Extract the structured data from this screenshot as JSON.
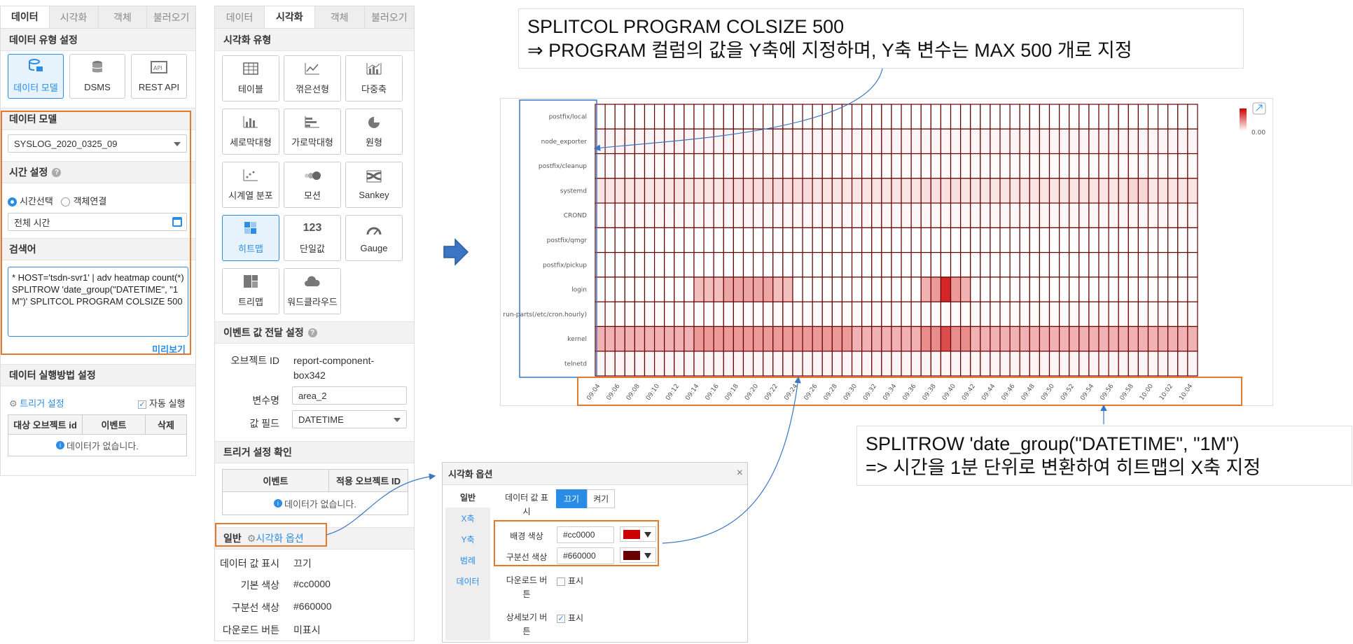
{
  "panel1": {
    "tabs": [
      "데이터",
      "시각화",
      "객체",
      "불러오기"
    ],
    "data_type_title": "데이터 유형 설정",
    "sources": [
      {
        "label": "데이터 모델",
        "icon": "database-model-icon"
      },
      {
        "label": "DSMS",
        "icon": "database-icon"
      },
      {
        "label": "REST API",
        "icon": "api-icon"
      }
    ],
    "model_title": "데이터 모델",
    "model_value": "SYSLOG_2020_0325_09",
    "time_title": "시간 설정",
    "radio_time": "시간선택",
    "radio_object": "객체연결",
    "time_value": "전체 시간",
    "search_title": "검색어",
    "query": "* HOST='tsdn-svr1' | adv heatmap count(*) SPLITROW 'date_group(\"DATETIME\", \"1M\")' SPLITCOL PROGRAM COLSIZE 500",
    "preview": "미리보기",
    "exec_title": "데이터 실행방법 설정",
    "trigger": "트리거 설정",
    "auto_run": "자동 실행",
    "table_headers": [
      "대상 오브젝트 id",
      "이벤트",
      "삭제"
    ],
    "empty": "데이터가 없습니다."
  },
  "panel2": {
    "tabs": [
      "데이터",
      "시각화",
      "객체",
      "불러오기"
    ],
    "vis_type_title": "시각화 유형",
    "types": [
      {
        "label": "테이블",
        "icon": "table-icon"
      },
      {
        "label": "꺾은선형",
        "icon": "line-chart-icon"
      },
      {
        "label": "다중축",
        "icon": "multi-axis-icon"
      },
      {
        "label": "세로막대형",
        "icon": "column-chart-icon"
      },
      {
        "label": "가로막대형",
        "icon": "bar-chart-icon"
      },
      {
        "label": "원형",
        "icon": "pie-chart-icon"
      },
      {
        "label": "시계열 분포",
        "icon": "scatter-icon"
      },
      {
        "label": "모션",
        "icon": "motion-icon"
      },
      {
        "label": "Sankey",
        "icon": "sankey-icon"
      },
      {
        "label": "히트맵",
        "icon": "heatmap-icon"
      },
      {
        "label": "단일값",
        "icon": "single-value-icon",
        "glyph": "123"
      },
      {
        "label": "Gauge",
        "icon": "gauge-icon"
      },
      {
        "label": "트리맵",
        "icon": "treemap-icon"
      },
      {
        "label": "워드클라우드",
        "icon": "word-cloud-icon"
      }
    ],
    "event_title": "이벤트 값 전달 설정",
    "object_id_label": "오브젝트 ID",
    "object_id_value1": "report-component-",
    "object_id_value2": "box342",
    "var_label": "변수명",
    "var_value": "area_2",
    "field_label": "값 필드",
    "field_value": "DATETIME",
    "trigger_check_title": "트리거 설정 확인",
    "trigger_headers": [
      "이벤트",
      "적용 오브젝트 ID"
    ],
    "empty": "데이터가 없습니다.",
    "general": "일반",
    "vis_option": "시각화 옵션",
    "summary": [
      {
        "label": "데이터 값 표시",
        "value": "끄기"
      },
      {
        "label": "기본 색상",
        "value": "#cc0000"
      },
      {
        "label": "구분선 색상",
        "value": "#660000"
      },
      {
        "label": "다운로드 버튼",
        "value": "미표시"
      }
    ]
  },
  "dialog": {
    "title": "시각화 옵션",
    "close": "×",
    "tabs": [
      "일반",
      "X축",
      "Y축",
      "범례",
      "데이터"
    ],
    "show_value_label1": "데이터 값 표",
    "show_value_label2": "시",
    "off": "끄기",
    "on": "켜기",
    "bg_label": "배경 색상",
    "bg_value": "#cc0000",
    "line_label": "구분선 색상",
    "line_value": "#660000",
    "download_label1": "다운로드 버",
    "download_label2": "튼",
    "download_opt": "표시",
    "detail_label1": "상세보기 버",
    "detail_label2": "튼",
    "detail_opt": "표시",
    "colors": {
      "bg": "#cc0000",
      "line": "#660000"
    }
  },
  "notes": {
    "top_line1": "SPLITCOL PROGRAM COLSIZE 500",
    "top_line2": "⇒  PROGRAM 컬럼의 값을 Y축에 지정하며, Y축 변수는 MAX 500 개로 지정",
    "bottom_line1": "SPLITROW 'date_group(\"DATETIME\", \"1M\")",
    "bottom_line2": "=> 시간을 1분 단위로 변환하여 히트맵의 X축 지정"
  },
  "heatmap": {
    "legend_value": "0.00"
  },
  "chart_data": {
    "type": "heatmap",
    "rows": [
      "postfix/local",
      "node_exporter",
      "postfix/cleanup",
      "systemd",
      "CROND",
      "postfix/qmgr",
      "postfix/pickup",
      "login",
      "run-parts(/etc/cron.hourly)",
      "kernel",
      "telnetd"
    ],
    "x_tick_labels": [
      "09:04",
      "09:06",
      "09:08",
      "09:10",
      "09:12",
      "09:14",
      "09:16",
      "09:18",
      "09:20",
      "09:22",
      "09:24",
      "09:26",
      "09:28",
      "09:30",
      "09:32",
      "09:34",
      "09:36",
      "09:38",
      "09:40",
      "09:42",
      "09:44",
      "09:46",
      "09:48",
      "09:50",
      "09:52",
      "09:54",
      "09:56",
      "09:58",
      "10:00",
      "10:02",
      "10:04"
    ],
    "column_count": 61,
    "color": "#cc0000",
    "border_color": "#660000",
    "legend_min": "0.00",
    "intensity_rows": {
      "postfix/local": [
        [
          0,
          60,
          0.0
        ]
      ],
      "node_exporter": [
        [
          0,
          60,
          0.04
        ]
      ],
      "postfix/cleanup": [
        [
          0,
          60,
          0.02
        ]
      ],
      "systemd": [
        [
          0,
          60,
          0.1
        ],
        [
          13,
          21,
          0.14
        ],
        [
          33,
          36,
          0.12
        ],
        [
          54,
          55,
          0.16
        ]
      ],
      "CROND": [
        [
          0,
          60,
          0.03
        ]
      ],
      "postfix/qmgr": [
        [
          0,
          60,
          0.0
        ]
      ],
      "postfix/pickup": [
        [
          0,
          60,
          0.0
        ]
      ],
      "login": [
        [
          10,
          19,
          0.25
        ],
        [
          13,
          17,
          0.35
        ],
        [
          33,
          37,
          0.3
        ],
        [
          35,
          35,
          0.85
        ],
        [
          34,
          36,
          0.4
        ]
      ],
      "run-parts(/etc/cron.hourly)": [
        [
          0,
          60,
          0.02
        ]
      ],
      "kernel": [
        [
          0,
          60,
          0.3
        ],
        [
          10,
          25,
          0.4
        ],
        [
          33,
          37,
          0.45
        ],
        [
          35,
          35,
          0.7
        ]
      ],
      "telnetd": [
        [
          0,
          60,
          0.04
        ]
      ]
    }
  }
}
